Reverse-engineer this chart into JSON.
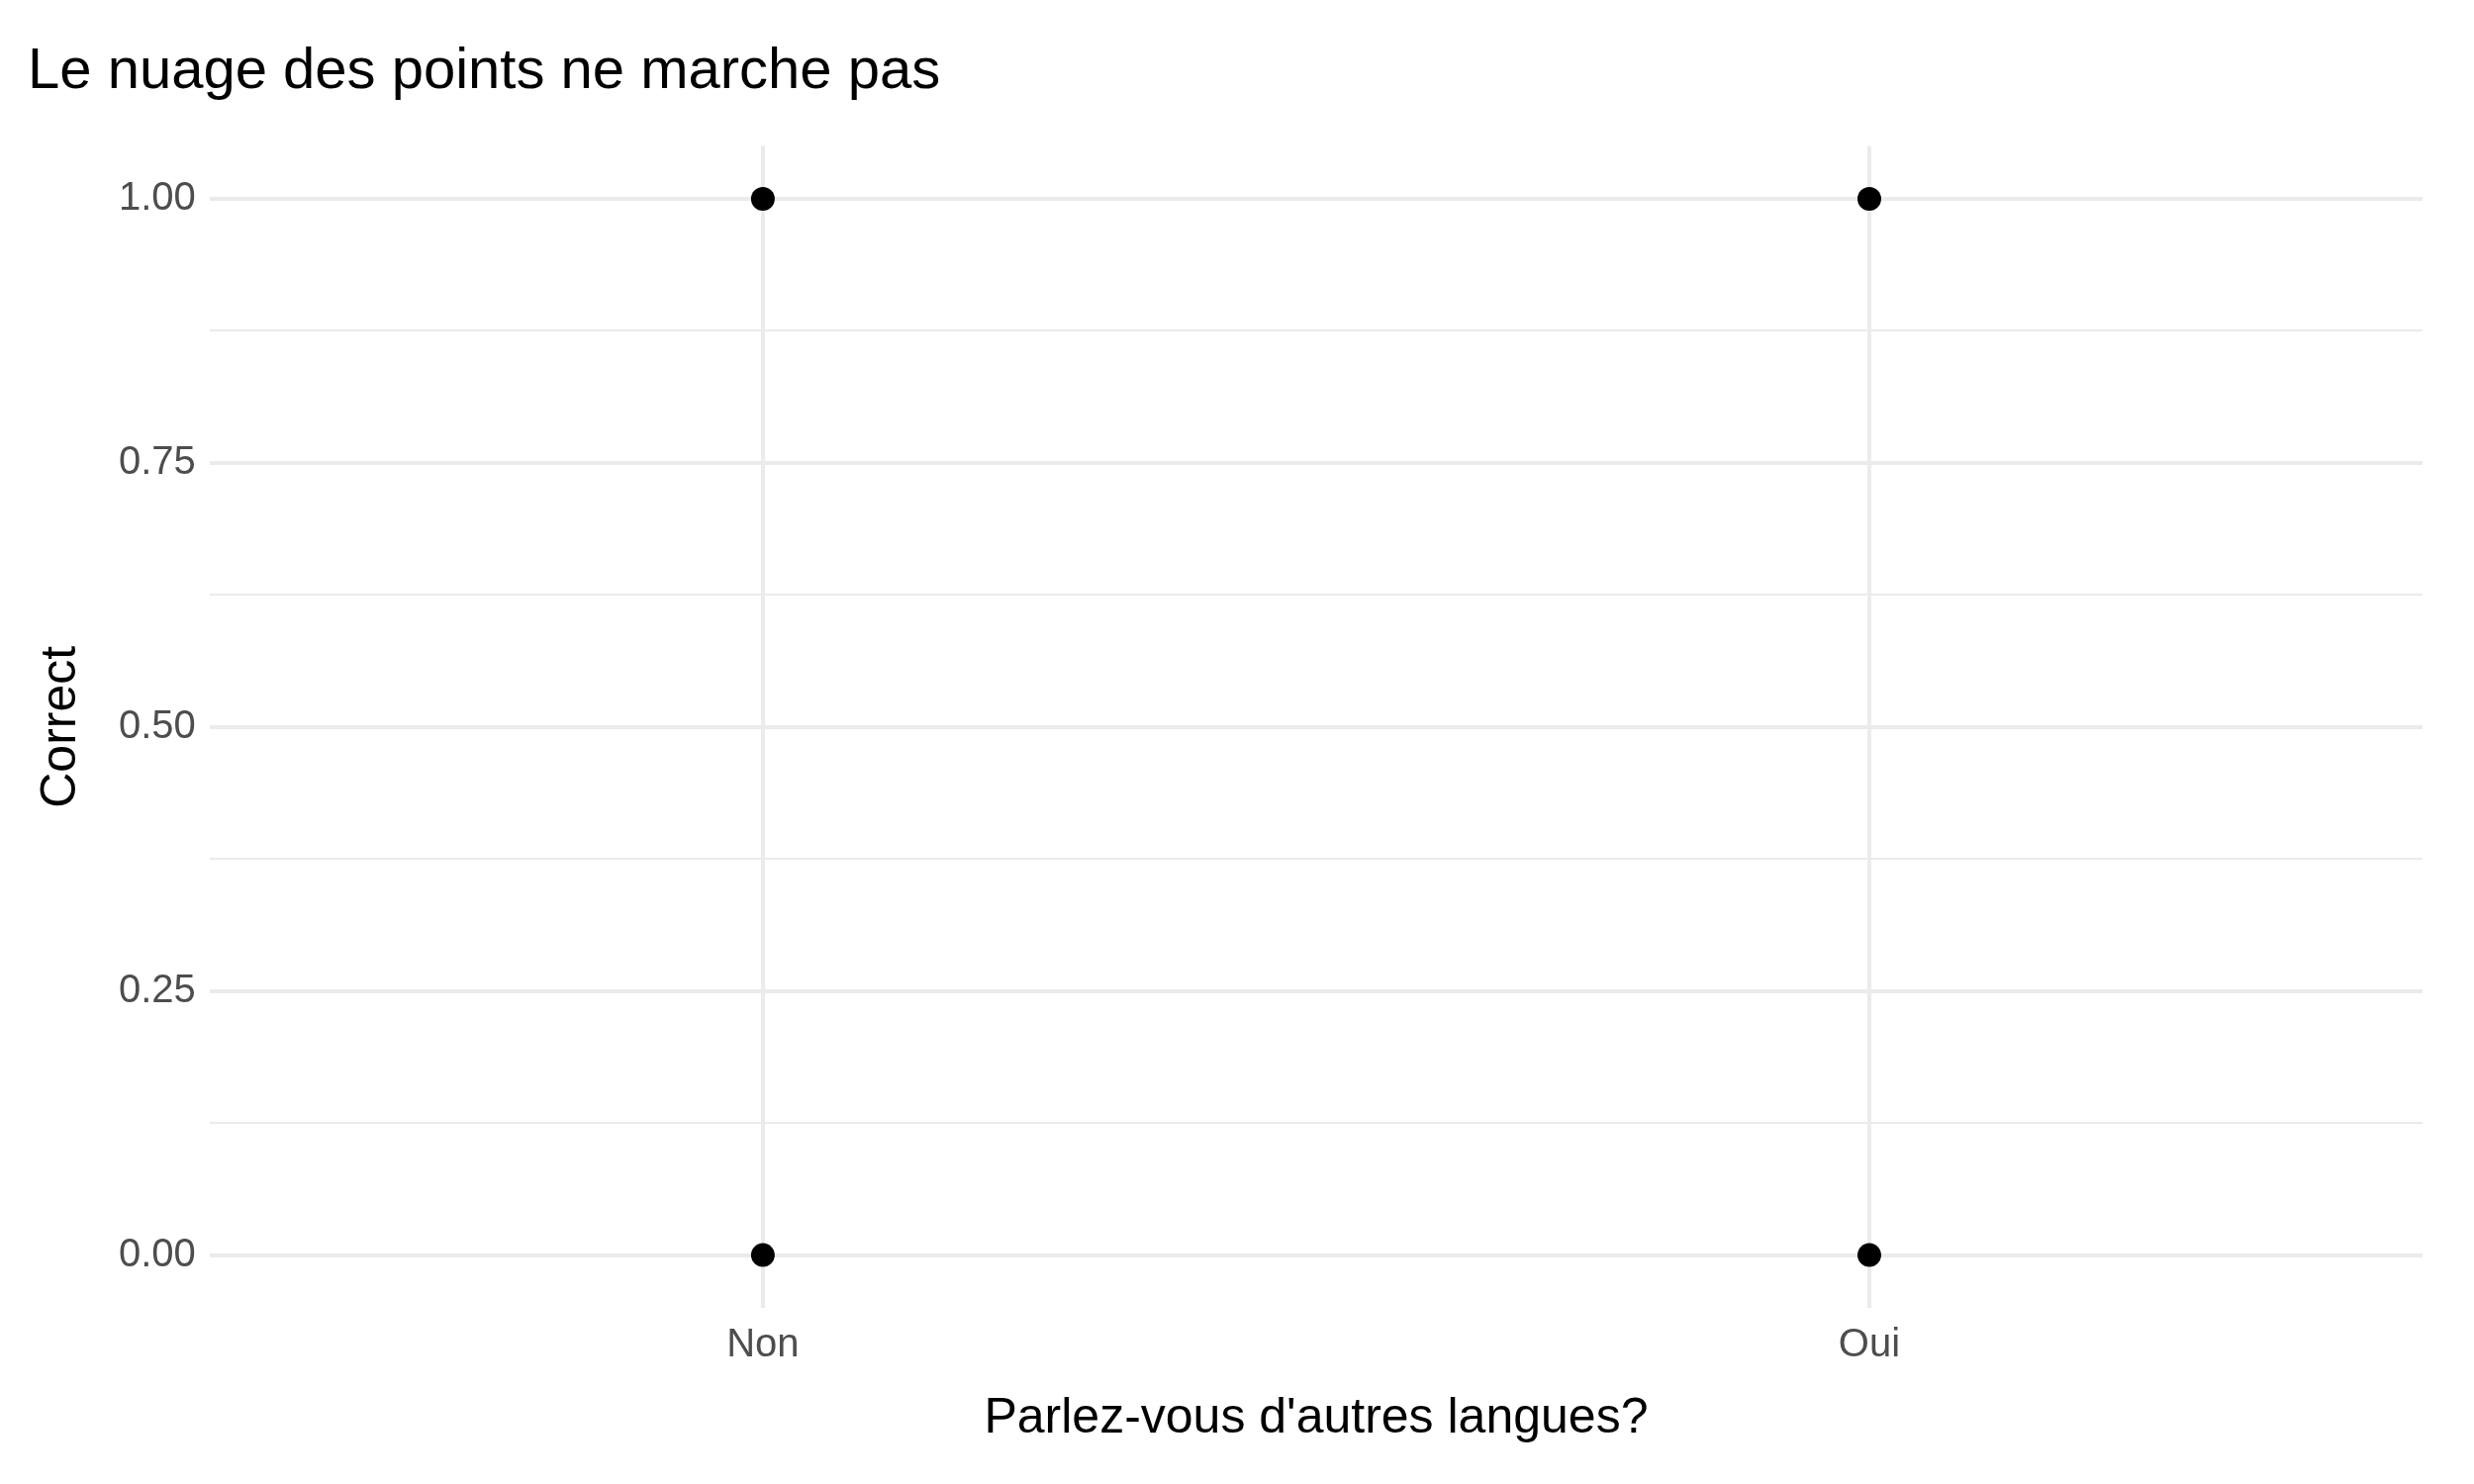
{
  "chart_data": {
    "type": "scatter",
    "title": "Le nuage des points ne marche pas",
    "xlabel": "Parlez-vous d'autres langues?",
    "ylabel": "Correct",
    "categories": [
      "Non",
      "Oui"
    ],
    "series": [
      {
        "color": "#000000",
        "x": [
          "Non",
          "Non",
          "Oui",
          "Oui"
        ],
        "values": [
          0,
          1,
          0,
          1
        ]
      }
    ],
    "ylim": [
      -0.05,
      1.05
    ],
    "yticks": [
      {
        "value": 0,
        "label": "0.00"
      },
      {
        "value": 0.125,
        "label": null
      },
      {
        "value": 0.25,
        "label": "0.25"
      },
      {
        "value": 0.375,
        "label": null
      },
      {
        "value": 0.5,
        "label": "0.50"
      },
      {
        "value": 0.625,
        "label": null
      },
      {
        "value": 0.75,
        "label": "0.75"
      },
      {
        "value": 0.875,
        "label": null
      },
      {
        "value": 1,
        "label": "1.00"
      }
    ],
    "grid": true,
    "legend": false,
    "marker": "circle"
  }
}
